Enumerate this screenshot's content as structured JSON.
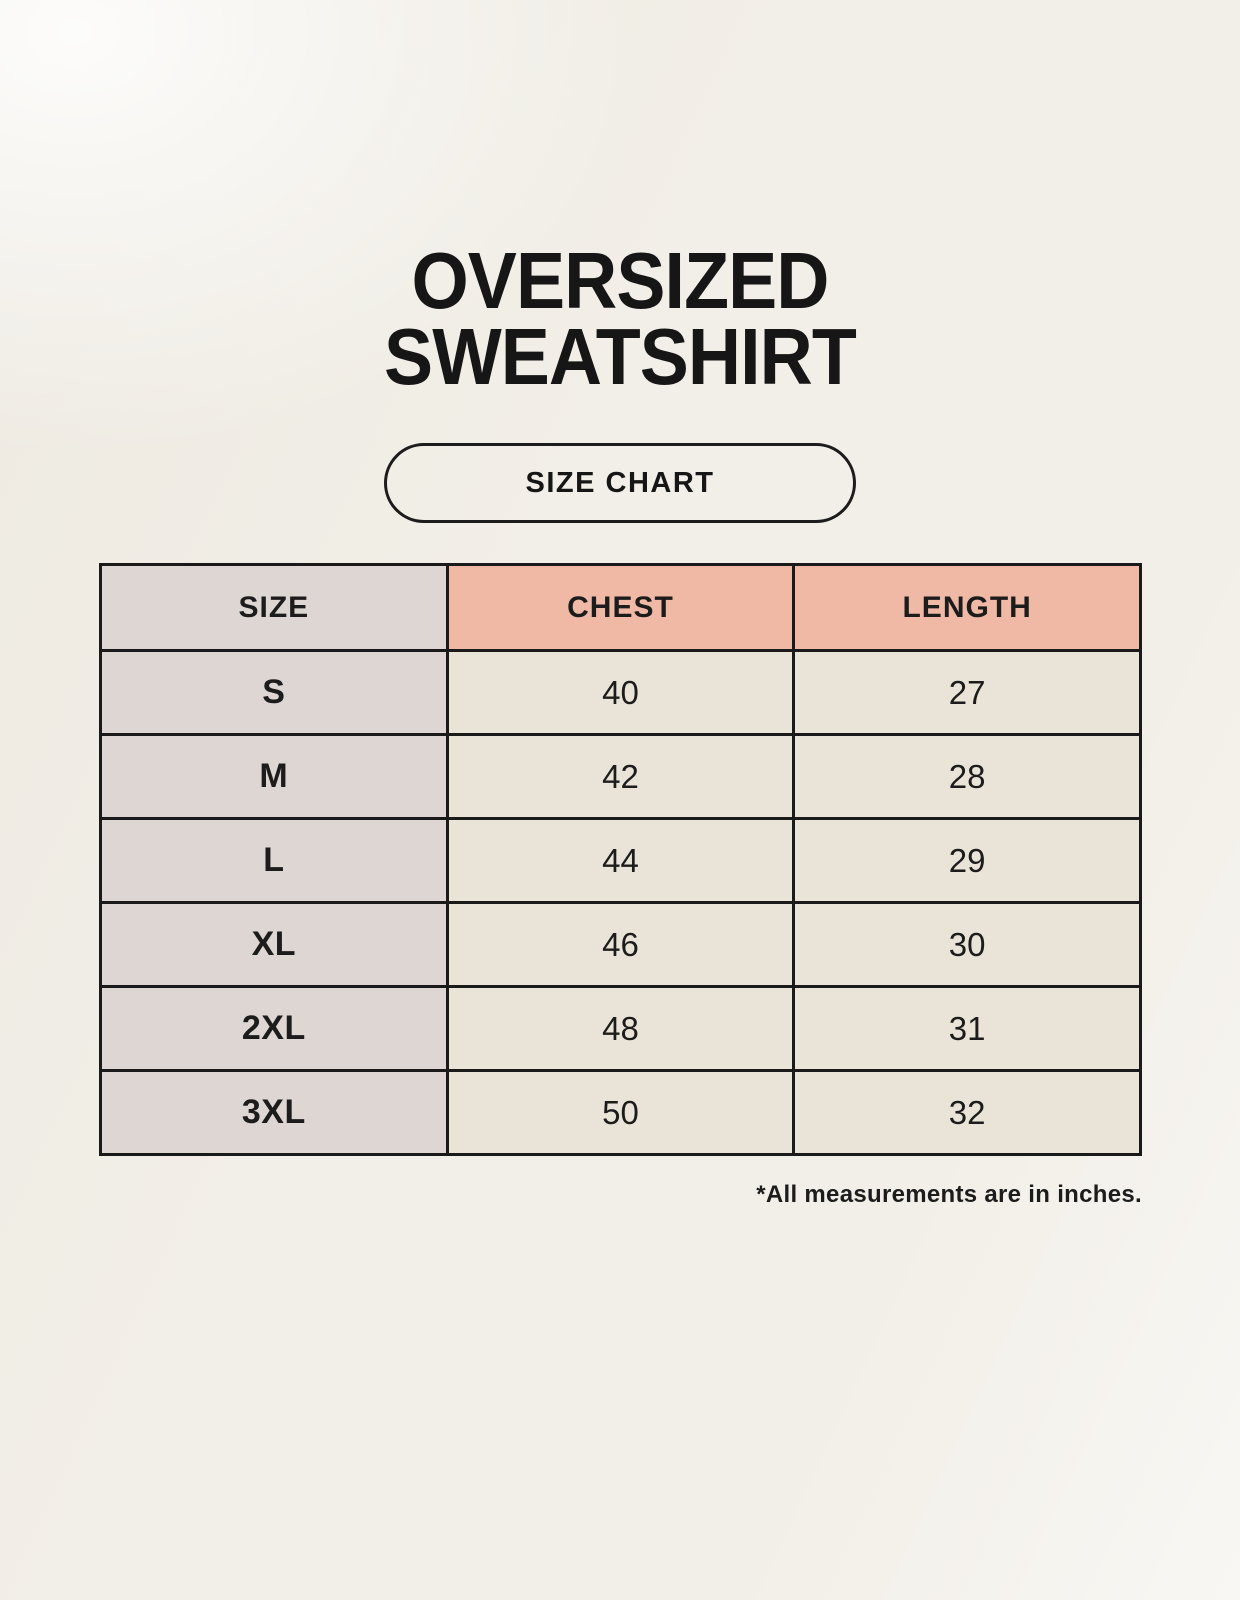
{
  "header": {
    "title_line1": "OVERSIZED",
    "title_line2": "SWEATSHIRT",
    "badge_label": "SIZE CHART"
  },
  "chart_data": {
    "type": "table",
    "title": "OVERSIZED SWEATSHIRT — SIZE CHART",
    "columns": [
      "SIZE",
      "CHEST",
      "LENGTH"
    ],
    "rows": [
      [
        "S",
        "40",
        "27"
      ],
      [
        "M",
        "42",
        "28"
      ],
      [
        "L",
        "44",
        "29"
      ],
      [
        "XL",
        "46",
        "30"
      ],
      [
        "2XL",
        "48",
        "31"
      ],
      [
        "3XL",
        "50",
        "32"
      ]
    ],
    "units_note": "*All measurements are in inches."
  },
  "footer": {
    "note": "*All measurements are in inches."
  },
  "colors": {
    "background": "#F2EFE8",
    "table_border": "#1A1A1A",
    "size_column_bg": "#DDD6D2",
    "header_accent_bg": "#F0B9A5",
    "data_cell_bg": "#EAE4D8",
    "text": "#1C1C1C"
  }
}
